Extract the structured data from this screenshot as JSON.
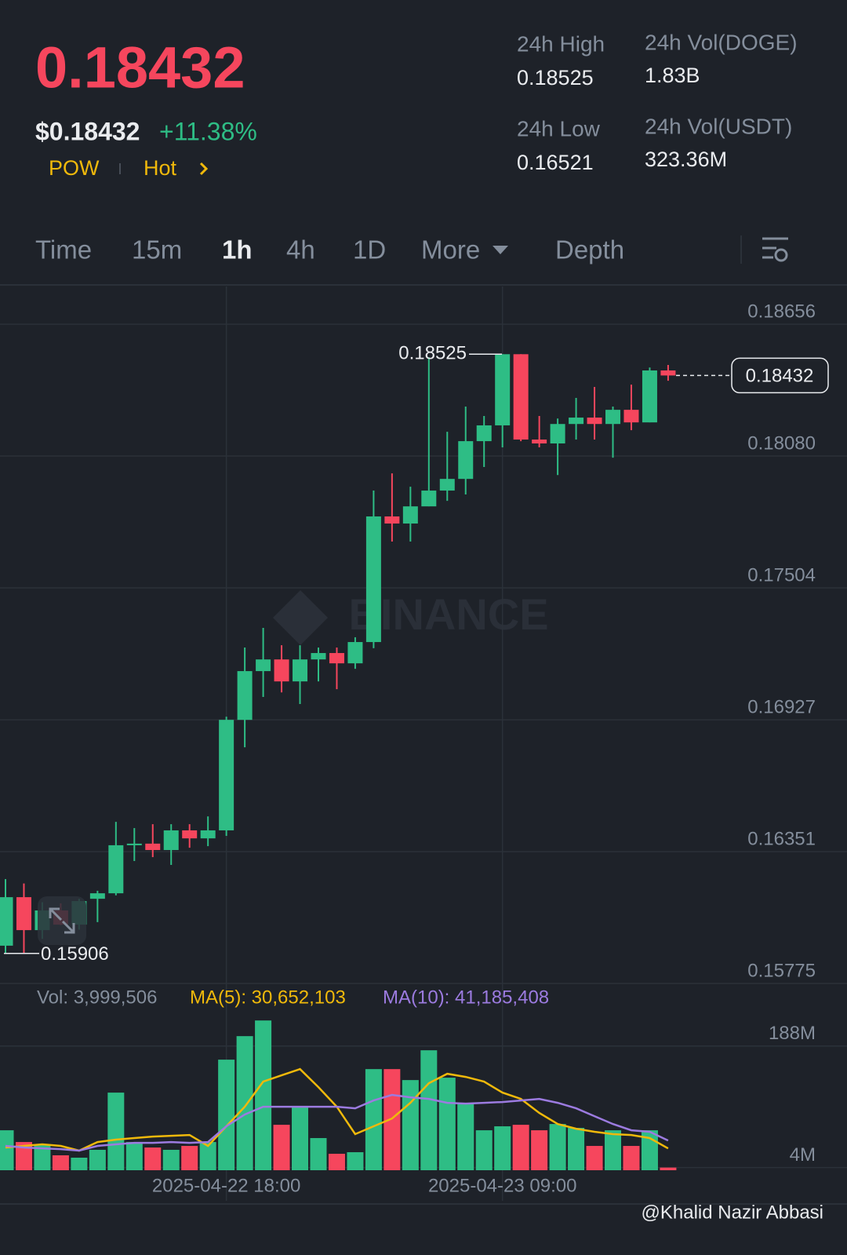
{
  "header": {
    "price": "0.18432",
    "fiat_price": "$0.18432",
    "change": "+11.38%",
    "tags": [
      "POW",
      "Hot"
    ],
    "stats": [
      {
        "label": "24h High",
        "value": "0.18525"
      },
      {
        "label": "24h Vol(DOGE)",
        "value": "1.83B"
      },
      {
        "label": "24h Low",
        "value": "0.16521"
      },
      {
        "label": "24h Vol(USDT)",
        "value": "323.36M"
      }
    ]
  },
  "tabs": [
    "Time",
    "15m",
    "1h",
    "4h",
    "1D",
    "More",
    "Depth"
  ],
  "active_tab": 2,
  "watermark": "BINANCE",
  "credit": "@Khalid Nazir Abbasi",
  "chart_data": {
    "type": "candlestick",
    "categories": [
      null,
      null,
      null,
      null,
      null,
      null,
      null,
      null,
      null,
      null,
      null,
      null,
      "2025-04-22 18:00",
      null,
      null,
      null,
      null,
      null,
      null,
      null,
      null,
      null,
      null,
      null,
      null,
      null,
      null,
      "2025-04-23 09:00",
      null,
      null,
      null,
      null,
      null,
      null,
      null,
      null,
      null
    ],
    "open": [
      0.1594,
      0.16152,
      0.16008,
      0.16094,
      0.16032,
      0.16145,
      0.16169,
      0.16379,
      0.16386,
      0.16358,
      0.16444,
      0.16409,
      0.16444,
      0.16927,
      0.1714,
      0.17191,
      0.17095,
      0.17191,
      0.17219,
      0.17174,
      0.17267,
      0.17816,
      0.17785,
      0.1786,
      0.17929,
      0.1798,
      0.18145,
      0.18214,
      0.18525,
      0.18152,
      0.18135,
      0.1822,
      0.18248,
      0.1822,
      0.18282,
      0.18227,
      0.18454
    ],
    "high": [
      0.16231,
      0.16212,
      0.1613,
      0.16125,
      0.16145,
      0.1618,
      0.16481,
      0.16454,
      0.16471,
      0.16471,
      0.16471,
      0.16505,
      0.16941,
      0.17243,
      0.17329,
      0.17253,
      0.17253,
      0.17243,
      0.17243,
      0.17288,
      0.17929,
      0.18004,
      0.17946,
      0.18512,
      0.18186,
      0.18296,
      0.18255,
      0.18525,
      0.18525,
      0.18255,
      0.18244,
      0.18334,
      0.18382,
      0.18296,
      0.18392,
      0.18467,
      0.18478
    ],
    "low": [
      0.15906,
      0.15906,
      0.1597,
      0.1603,
      0.1601,
      0.16043,
      0.1616,
      0.1631,
      0.16327,
      0.16293,
      0.16368,
      0.16375,
      0.1642,
      0.16807,
      0.17027,
      0.17047,
      0.16996,
      0.17095,
      0.17061,
      0.1715,
      0.1724,
      0.17706,
      0.17706,
      0.1786,
      0.17884,
      0.17912,
      0.18032,
      0.18118,
      0.18145,
      0.18118,
      0.17997,
      0.18152,
      0.18152,
      0.18073,
      0.18193,
      0.18227,
      0.18409
    ],
    "close": [
      0.16152,
      0.16008,
      0.16094,
      0.16032,
      0.16135,
      0.16169,
      0.16379,
      0.16386,
      0.16358,
      0.16444,
      0.16409,
      0.16444,
      0.16927,
      0.1714,
      0.17191,
      0.17095,
      0.17191,
      0.17219,
      0.17174,
      0.17267,
      0.17816,
      0.17785,
      0.1786,
      0.17929,
      0.1798,
      0.18145,
      0.18214,
      0.18525,
      0.18152,
      0.18135,
      0.1822,
      0.18248,
      0.1822,
      0.18282,
      0.18227,
      0.18454,
      0.18432
    ],
    "up_color": "#2ebd85",
    "down_color": "#f6465d",
    "ylim": [
      0.15775,
      0.18821
    ],
    "yticks": [
      0.18656,
      {
        "value": 0.1808,
        "label": "0.18080"
      },
      0.17504,
      0.16927,
      0.16351,
      0.15775
    ],
    "grid": true,
    "high_label": 0.18525,
    "low_label": 0.15906,
    "last_price": 0.18432,
    "volume": {
      "values": [
        60.5,
        42.7,
        39.2,
        22.6,
        19.0,
        30.9,
        117.5,
        42.7,
        34.4,
        30.9,
        36.8,
        42.7,
        167.4,
        203.0,
        226.7,
        68.8,
        96.1,
        48.7,
        24.9,
        27.3,
        153.1,
        153.1,
        136.5,
        181.6,
        140.1,
        102.1,
        60.5,
        66.5,
        68.8,
        60.5,
        70.0,
        64.1,
        36.8,
        60.5,
        36.8,
        60.5,
        4.0
      ],
      "ylim": [
        0,
        240
      ],
      "yticks": [
        {
          "value": 188,
          "label": "188M"
        },
        {
          "value": 4,
          "label": "4M"
        }
      ],
      "label": "Vol: 3,999,506",
      "series": [
        {
          "label": "MA(5): 30,652,103",
          "color": "#f0b90b",
          "values": [
            34.4,
            36.8,
            39.2,
            36.8,
            29.7,
            42.7,
            46.3,
            48.7,
            51.0,
            52.2,
            53.4,
            36.8,
            66.5,
            96.1,
            134.1,
            143.6,
            153.1,
            125.8,
            96.1,
            54.6,
            66.5,
            78.3,
            102.1,
            131.8,
            146.0,
            141.3,
            134.1,
            117.5,
            108.0,
            86.7,
            70.0,
            62.9,
            58.2,
            54.6,
            53.4,
            48.7,
            33.0
          ]
        },
        {
          "label": "MA(10): 41,185,408",
          "color": "#9c7be0",
          "values": [
            36.8,
            34.4,
            33.2,
            32.0,
            29.7,
            36.8,
            39.2,
            41.5,
            41.5,
            42.7,
            41.5,
            42.7,
            66.5,
            84.3,
            96.1,
            96.1,
            96.1,
            96.1,
            96.1,
            93.8,
            105.6,
            114.0,
            110.4,
            108.0,
            102.1,
            100.9,
            102.1,
            103.3,
            105.6,
            108.0,
            102.1,
            93.8,
            81.9,
            70.0,
            60.5,
            58.2,
            45.0
          ]
        }
      ]
    }
  }
}
